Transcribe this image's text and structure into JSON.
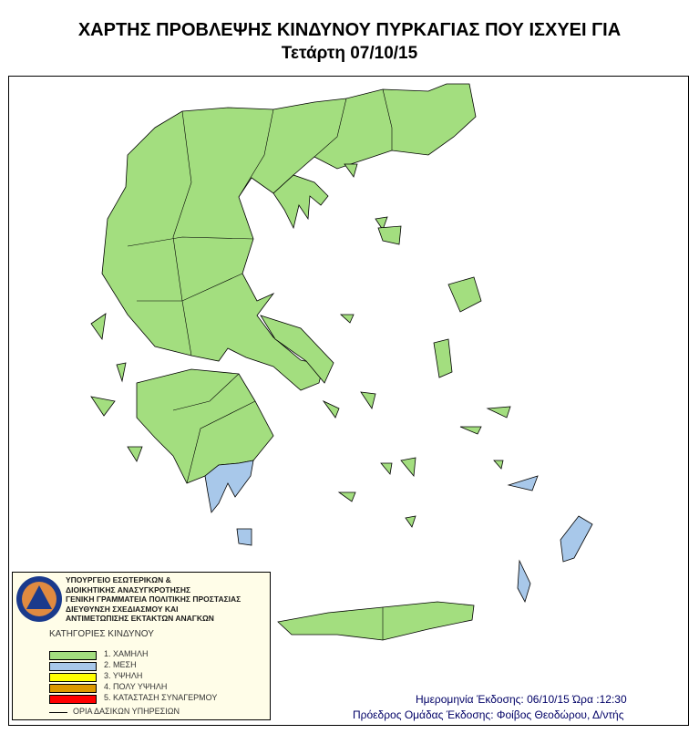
{
  "header": {
    "title": "ΧΑΡΤΗΣ ΠΡΟΒΛΕΨΗΣ ΚΙΝΔΥΝΟΥ ΠΥΡΚΑΓΙΑΣ ΠΟΥ ΙΣΧΥΕΙ ΓΙΑ",
    "date": "Τετάρτη 07/10/15"
  },
  "legend": {
    "logo_text": "ΠΟΛΙΤΙΚΗ ΠΡΟΣΤΑΣΙΑ ΕΛΛΑΔΑ",
    "org_lines": [
      "ΥΠΟΥΡΓΕΙΟ ΕΣΩΤΕΡΙΚΩΝ &",
      "ΔΙΟΙΚΗΤΙΚΗΣ ΑΝΑΣΥΓΚΡΟΤΗΣΗΣ",
      "ΓΕΝΙΚΗ ΓΡΑΜΜΑΤΕΙΑ ΠΟΛΙΤΙΚΗΣ ΠΡΟΣΤΑΣΙΑΣ",
      "ΔΙΕΥΘΥΝΣΗ ΣΧΕΔΙΑΣΜΟΥ ΚΑΙ",
      "ΑΝΤΙΜΕΤΩΠΙΣΗΣ ΕΚΤΑΚΤΩΝ ΑΝΑΓΚΩΝ"
    ],
    "categories_title": "ΚΑΤΗΓΟΡΙΕΣ ΚΙΝΔΥΝΟΥ",
    "categories": [
      {
        "label": "1. ΧΑΜΗΛΗ",
        "color": "#a3de7f"
      },
      {
        "label": "2. ΜΕΣΗ",
        "color": "#a8c8ea"
      },
      {
        "label": "3. ΥΨΗΛΗ",
        "color": "#ffff00"
      },
      {
        "label": "4. ΠΟΛΥ ΥΨΗΛΗ",
        "color": "#dd9900"
      },
      {
        "label": "5. ΚΑΤΑΣΤΑΣΗ ΣΥΝΑΓΕΡΜΟΥ",
        "color": "#ff0000"
      }
    ],
    "boundary_label": "ΟΡΙΑ ΔΑΣΙΚΩΝ ΥΠΗΡΕΣΙΩΝ"
  },
  "footer": {
    "issue_date": "Ημερομηνία Έκδοσης: 06/10/15  Ώρα :12:30",
    "issuer": "Πρόεδρος Ομάδας Έκδοσης: Φοίβος Θεοδώρου, Δ/ντής"
  }
}
